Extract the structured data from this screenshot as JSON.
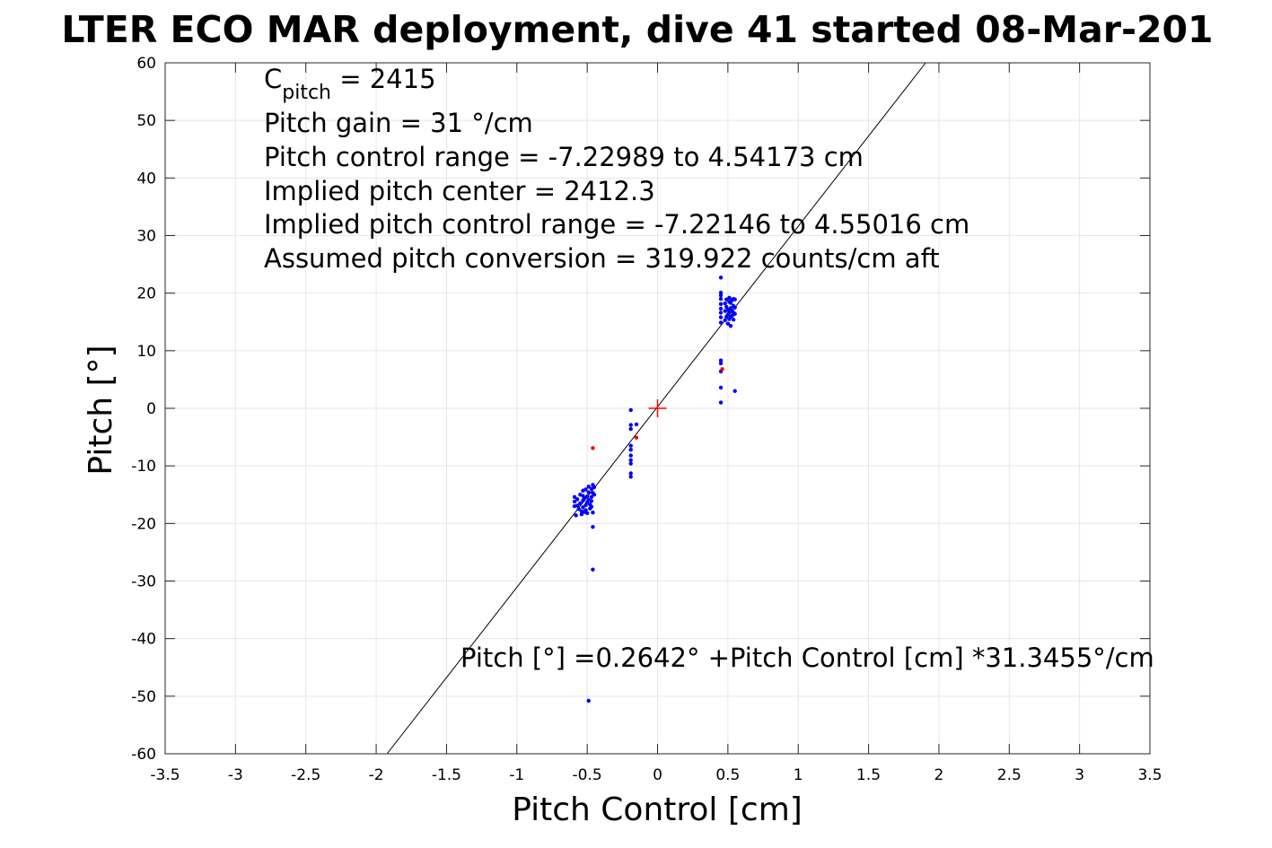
{
  "chart_data": {
    "type": "scatter",
    "title": "LTER ECO MAR deployment, dive 41 started 08-Mar-201",
    "xlabel": "Pitch Control [cm]",
    "ylabel": "Pitch [°]",
    "xlim": [
      -3.5,
      3.5
    ],
    "ylim": [
      -60,
      60
    ],
    "xticks": [
      -3.5,
      -3,
      -2.5,
      -2,
      -1.5,
      -1,
      -0.5,
      0,
      0.5,
      1,
      1.5,
      2,
      2.5,
      3,
      3.5
    ],
    "xtick_labels": [
      "-3.5",
      "-3",
      "-2.5",
      "-2",
      "-1.5",
      "-1",
      "-0.5",
      "0",
      "0.5",
      "1",
      "1.5",
      "2",
      "2.5",
      "3",
      "3.5"
    ],
    "yticks": [
      -60,
      -50,
      -40,
      -30,
      -20,
      -10,
      0,
      10,
      20,
      30,
      40,
      50,
      60
    ],
    "ytick_labels": [
      "-60",
      "-50",
      "-40",
      "-30",
      "-20",
      "-10",
      "0",
      "10",
      "20",
      "30",
      "40",
      "50",
      "60"
    ],
    "grid": true,
    "fit_line": {
      "intercept": 0.2642,
      "slope": 31.3455
    },
    "center_marker": {
      "x": 0,
      "y": 0,
      "color": "#ff0000"
    },
    "annotations": {
      "cpitch_main": "C",
      "cpitch_sub": "pitch",
      "cpitch_value": " = 2415",
      "lines": [
        "Pitch gain = 31 °/cm",
        "Pitch control range = -7.22989 to 4.54173 cm",
        "Implied pitch center = 2412.3",
        "Implied pitch control range = -7.22146 to 4.55016 cm",
        "Assumed pitch conversion = 319.922 counts/cm aft"
      ],
      "fit_equation": "Pitch [°] =0.2642° +Pitch Control [cm] *31.3455°/cm"
    },
    "series": [
      {
        "color": "#0000ff",
        "points": [
          [
            -0.59,
            -15.4
          ],
          [
            -0.59,
            -16.2
          ],
          [
            -0.59,
            -17.0
          ],
          [
            -0.58,
            -18.6
          ],
          [
            -0.57,
            -15.8
          ],
          [
            -0.57,
            -16.9
          ],
          [
            -0.56,
            -17.5
          ],
          [
            -0.55,
            -15.0
          ],
          [
            -0.55,
            -16.5
          ],
          [
            -0.54,
            -17.9
          ],
          [
            -0.54,
            -18.4
          ],
          [
            -0.53,
            -14.3
          ],
          [
            -0.53,
            -15.2
          ],
          [
            -0.53,
            -16.0
          ],
          [
            -0.53,
            -17.2
          ],
          [
            -0.52,
            -18.0
          ],
          [
            -0.52,
            -15.6
          ],
          [
            -0.51,
            -14.1
          ],
          [
            -0.51,
            -16.8
          ],
          [
            -0.51,
            -17.7
          ],
          [
            -0.5,
            -15.3
          ],
          [
            -0.5,
            -16.3
          ],
          [
            -0.5,
            -18.2
          ],
          [
            -0.49,
            -13.6
          ],
          [
            -0.49,
            -14.6
          ],
          [
            -0.49,
            -15.9
          ],
          [
            -0.48,
            -16.7
          ],
          [
            -0.48,
            -17.4
          ],
          [
            -0.47,
            -14.0
          ],
          [
            -0.47,
            -15.4
          ],
          [
            -0.47,
            -16.1
          ],
          [
            -0.47,
            -17.1
          ],
          [
            -0.46,
            -13.3
          ],
          [
            -0.46,
            -14.7
          ],
          [
            -0.46,
            -18.1
          ],
          [
            -0.46,
            -20.6
          ],
          [
            -0.46,
            -28.0
          ],
          [
            -0.45,
            -13.7
          ],
          [
            -0.45,
            -15.0
          ],
          [
            -0.49,
            -50.8
          ],
          [
            -0.19,
            -0.3
          ],
          [
            -0.19,
            -2.9
          ],
          [
            -0.19,
            -3.6
          ],
          [
            -0.19,
            -6.5
          ],
          [
            -0.19,
            -7.2
          ],
          [
            -0.19,
            -8.2
          ],
          [
            -0.19,
            -9.0
          ],
          [
            -0.19,
            -9.6
          ],
          [
            -0.19,
            -11.3
          ],
          [
            -0.19,
            -11.9
          ],
          [
            -0.15,
            -2.8
          ],
          [
            0.45,
            1.0
          ],
          [
            0.45,
            3.6
          ],
          [
            0.45,
            6.4
          ],
          [
            0.45,
            7.8
          ],
          [
            0.45,
            8.3
          ],
          [
            0.45,
            14.9
          ],
          [
            0.45,
            15.8
          ],
          [
            0.45,
            16.6
          ],
          [
            0.45,
            17.3
          ],
          [
            0.45,
            18.1
          ],
          [
            0.45,
            19.0
          ],
          [
            0.45,
            19.6
          ],
          [
            0.45,
            20.1
          ],
          [
            0.45,
            22.7
          ],
          [
            0.48,
            15.3
          ],
          [
            0.48,
            16.9
          ],
          [
            0.48,
            18.2
          ],
          [
            0.49,
            15.9
          ],
          [
            0.49,
            17.6
          ],
          [
            0.49,
            18.9
          ],
          [
            0.5,
            14.7
          ],
          [
            0.5,
            16.3
          ],
          [
            0.5,
            17.1
          ],
          [
            0.51,
            15.5
          ],
          [
            0.51,
            16.8
          ],
          [
            0.51,
            18.5
          ],
          [
            0.51,
            19.2
          ],
          [
            0.52,
            14.3
          ],
          [
            0.52,
            15.9
          ],
          [
            0.52,
            17.4
          ],
          [
            0.52,
            18.3
          ],
          [
            0.53,
            16.1
          ],
          [
            0.53,
            17.0
          ],
          [
            0.53,
            18.8
          ],
          [
            0.54,
            15.4
          ],
          [
            0.54,
            16.6
          ],
          [
            0.54,
            17.8
          ],
          [
            0.54,
            19.0
          ],
          [
            0.55,
            16.4
          ],
          [
            0.55,
            17.5
          ],
          [
            0.55,
            18.9
          ],
          [
            0.55,
            3.0
          ]
        ]
      },
      {
        "color": "#ff0000",
        "points": [
          [
            -0.46,
            -6.9
          ],
          [
            -0.15,
            -5.1
          ],
          [
            0.46,
            6.8
          ]
        ]
      }
    ]
  }
}
